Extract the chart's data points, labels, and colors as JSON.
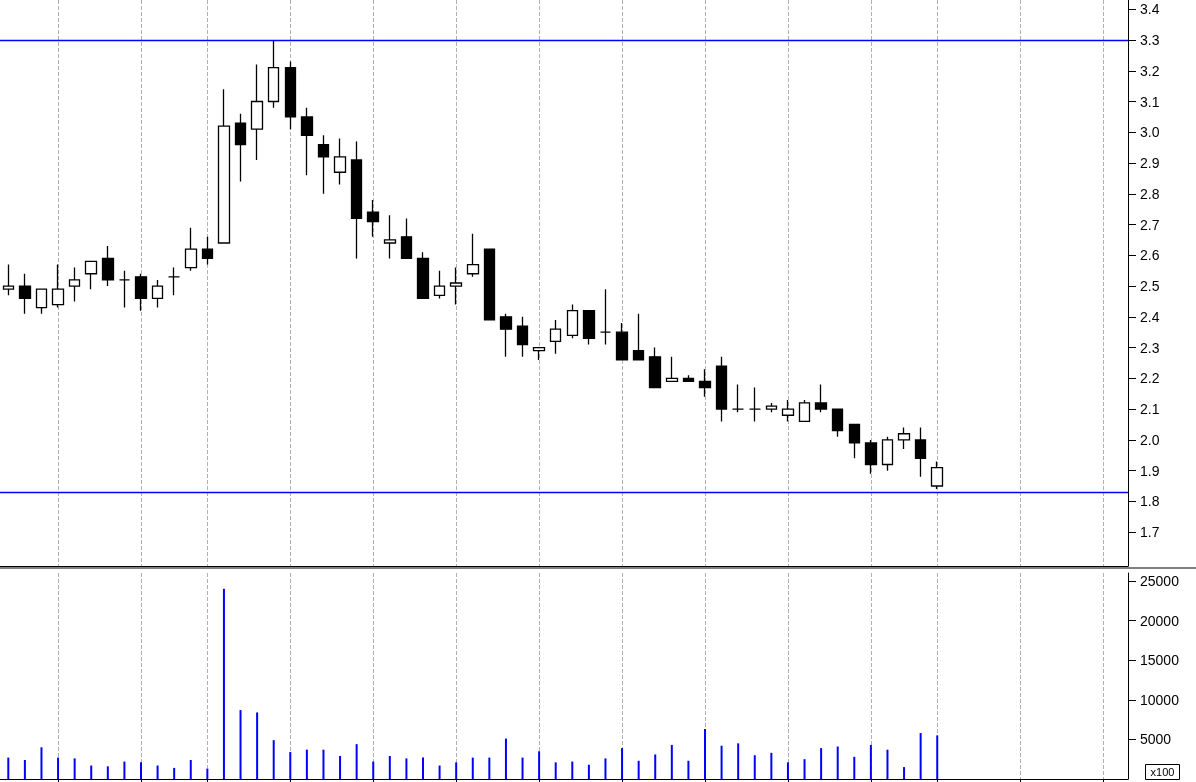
{
  "chart_data": [
    {
      "type": "candlestick",
      "categories": [
        null,
        null,
        null,
        null,
        null,
        null,
        null,
        null,
        null,
        null,
        null,
        null,
        null,
        null,
        null,
        null,
        null,
        null,
        null,
        null,
        null,
        null,
        null,
        null,
        null,
        null,
        null,
        null,
        null,
        null,
        null,
        null,
        null,
        null,
        null,
        null,
        null,
        null,
        null,
        null,
        null,
        null,
        null,
        null,
        null,
        null,
        null,
        null,
        null,
        null,
        null,
        null,
        null,
        null,
        null,
        null,
        null,
        null,
        null,
        null,
        null,
        null,
        null,
        null,
        null,
        null,
        null,
        null
      ],
      "ohlc": [
        [
          2.49,
          2.57,
          2.47,
          2.5
        ],
        [
          2.5,
          2.54,
          2.41,
          2.46
        ],
        [
          2.43,
          2.49,
          2.41,
          2.49
        ],
        [
          2.44,
          2.57,
          2.43,
          2.49
        ],
        [
          2.5,
          2.56,
          2.45,
          2.52
        ],
        [
          2.54,
          2.58,
          2.49,
          2.58
        ],
        [
          2.59,
          2.63,
          2.5,
          2.52
        ],
        [
          2.52,
          2.55,
          2.43,
          2.52
        ],
        [
          2.53,
          2.54,
          2.42,
          2.46
        ],
        [
          2.46,
          2.52,
          2.43,
          2.5
        ],
        [
          2.53,
          2.56,
          2.47,
          2.53
        ],
        [
          2.56,
          2.69,
          2.55,
          2.62
        ],
        [
          2.62,
          2.66,
          2.57,
          2.59
        ],
        [
          2.64,
          3.14,
          2.64,
          3.02
        ],
        [
          3.03,
          3.06,
          2.84,
          2.96
        ],
        [
          3.01,
          3.22,
          2.91,
          3.1
        ],
        [
          3.1,
          3.3,
          3.08,
          3.21
        ],
        [
          3.21,
          3.23,
          3.01,
          3.05
        ],
        [
          3.05,
          3.08,
          2.86,
          2.99
        ],
        [
          2.96,
          2.99,
          2.8,
          2.92
        ],
        [
          2.87,
          2.98,
          2.83,
          2.92
        ],
        [
          2.91,
          2.97,
          2.59,
          2.72
        ],
        [
          2.74,
          2.78,
          2.66,
          2.71
        ],
        [
          2.64,
          2.73,
          2.59,
          2.65
        ],
        [
          2.66,
          2.72,
          2.59,
          2.59
        ],
        [
          2.59,
          2.61,
          2.46,
          2.46
        ],
        [
          2.47,
          2.55,
          2.46,
          2.5
        ],
        [
          2.5,
          2.56,
          2.44,
          2.51
        ],
        [
          2.54,
          2.67,
          2.53,
          2.57
        ],
        [
          2.62,
          2.62,
          2.39,
          2.39
        ],
        [
          2.4,
          2.41,
          2.27,
          2.36
        ],
        [
          2.37,
          2.4,
          2.27,
          2.31
        ],
        [
          2.29,
          2.3,
          2.26,
          2.3
        ],
        [
          2.32,
          2.39,
          2.28,
          2.36
        ],
        [
          2.34,
          2.44,
          2.33,
          2.42
        ],
        [
          2.42,
          2.42,
          2.31,
          2.33
        ],
        [
          2.35,
          2.49,
          2.31,
          2.35
        ],
        [
          2.35,
          2.38,
          2.26,
          2.26
        ],
        [
          2.29,
          2.41,
          2.26,
          2.26
        ],
        [
          2.27,
          2.3,
          2.17,
          2.17
        ],
        [
          2.19,
          2.27,
          2.19,
          2.2
        ],
        [
          2.2,
          2.21,
          2.19,
          2.19
        ],
        [
          2.19,
          2.23,
          2.14,
          2.17
        ],
        [
          2.24,
          2.27,
          2.06,
          2.1
        ],
        [
          2.1,
          2.18,
          2.09,
          2.1
        ],
        [
          2.1,
          2.17,
          2.06,
          2.1
        ],
        [
          2.1,
          2.12,
          2.09,
          2.11
        ],
        [
          2.08,
          2.13,
          2.06,
          2.1
        ],
        [
          2.06,
          2.13,
          2.06,
          2.12
        ],
        [
          2.12,
          2.18,
          2.09,
          2.1
        ],
        [
          2.1,
          2.1,
          2.01,
          2.03
        ],
        [
          2.05,
          2.05,
          1.94,
          1.99
        ],
        [
          1.99,
          2.0,
          1.89,
          1.92
        ],
        [
          1.92,
          2.01,
          1.9,
          2.0
        ],
        [
          2.0,
          2.04,
          1.97,
          2.02
        ],
        [
          2.0,
          2.04,
          1.88,
          1.94
        ],
        [
          1.85,
          1.93,
          1.84,
          1.91
        ],
        null,
        null,
        null,
        null,
        null,
        null,
        null,
        null,
        null,
        null,
        null
      ],
      "ylim": [
        1.59,
        3.43
      ],
      "yticks": [
        1.7,
        1.8,
        1.9,
        {
          "value": 2,
          "label": "2.0"
        },
        2.1,
        2.2,
        2.3,
        2.4,
        2.5,
        2.6,
        2.7,
        2.8,
        2.9,
        {
          "value": 3,
          "label": "3.0"
        },
        3.1,
        3.2,
        3.3,
        3.4
      ],
      "ref_lines": [
        {
          "axis": "y",
          "value": 3.3,
          "color": "#0000ff"
        },
        {
          "axis": "y",
          "value": 1.83,
          "color": "#0000ff"
        }
      ],
      "grid": "x",
      "tick_labels": "y"
    },
    {
      "type": "bar",
      "categories": [
        null,
        null,
        null,
        null,
        null,
        null,
        null,
        null,
        null,
        null,
        null,
        null,
        null,
        null,
        null,
        null,
        null,
        null,
        null,
        null,
        null,
        null,
        null,
        null,
        null,
        null,
        null,
        null,
        null,
        null,
        null,
        null,
        null,
        null,
        null,
        null,
        null,
        null,
        null,
        null,
        null,
        null,
        null,
        null,
        null,
        null,
        null,
        null,
        null,
        null,
        null,
        null,
        null,
        null,
        null,
        null,
        null,
        null,
        null,
        null,
        null,
        null,
        null,
        null,
        null,
        null,
        null,
        null
      ],
      "values": [
        2700,
        2400,
        4000,
        2700,
        2600,
        1700,
        1600,
        2200,
        2100,
        1700,
        1400,
        2400,
        1300,
        24000,
        8700,
        8400,
        4900,
        3400,
        3700,
        3700,
        2900,
        4400,
        2200,
        2900,
        2600,
        2700,
        1700,
        2100,
        2700,
        2700,
        5100,
        2700,
        3500,
        2100,
        2200,
        1800,
        2600,
        3900,
        2300,
        3100,
        4300,
        2300,
        6300,
        4200,
        4500,
        3000,
        3300,
        2100,
        2500,
        3900,
        4100,
        2800,
        4300,
        3700,
        1500,
        5800,
        5500,
        null,
        null,
        null,
        null,
        null,
        null,
        null,
        null,
        null,
        null,
        null
      ],
      "color": "#0000ff",
      "ylim": [
        0,
        26000
      ],
      "yticks": [
        5000,
        10000,
        15000,
        20000,
        25000
      ],
      "annotations": [
        "x100"
      ],
      "grid": "x",
      "tick_labels": "y"
    }
  ]
}
